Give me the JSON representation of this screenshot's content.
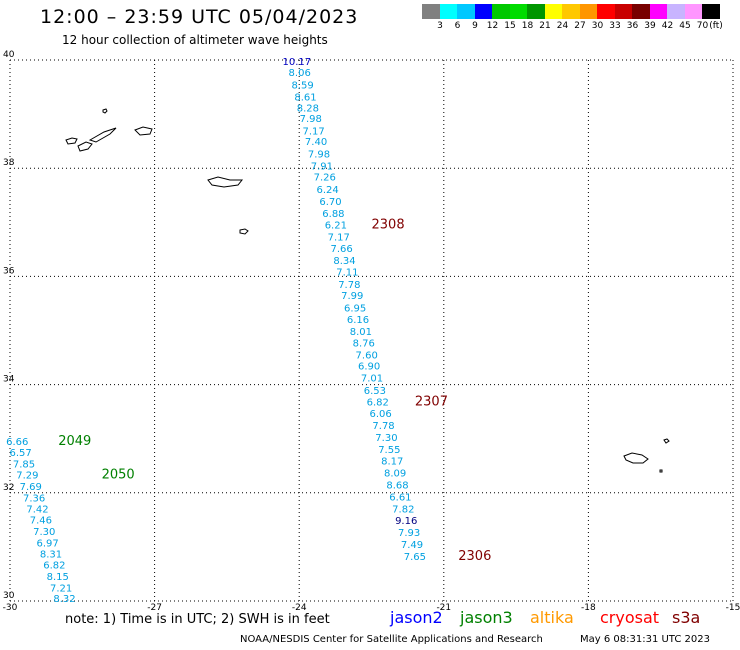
{
  "header": {
    "title": "12:00 – 23:59 UTC 05/04/2023",
    "subtitle": "12 hour collection of altimeter wave heights"
  },
  "legend": {
    "colors": [
      "#808080",
      "#00ffff",
      "#00c8ff",
      "#0000ff",
      "#00c800",
      "#00dc00",
      "#009600",
      "#ffff00",
      "#ffc800",
      "#ff9600",
      "#ff0000",
      "#c80000",
      "#780000",
      "#ff00ff",
      "#c8b4ff",
      "#ff96ff",
      "#000000"
    ],
    "ticks": [
      "3",
      "6",
      "9",
      "12",
      "15",
      "18",
      "21",
      "24",
      "27",
      "30",
      "33",
      "36",
      "39",
      "42",
      "45",
      "70"
    ],
    "unit": "(ft)"
  },
  "axes": {
    "lat_labels": [
      "40",
      "38",
      "36",
      "34",
      "32",
      "30"
    ],
    "lon_labels": [
      "-30",
      "-27",
      "-24",
      "-21",
      "-18",
      "-15"
    ],
    "lat_range": [
      30,
      40
    ],
    "lon_range": [
      -30,
      -15
    ]
  },
  "colors": {
    "jason2": "#0000ff",
    "jason3": "#008000",
    "altika": "#ff9900",
    "cryosat": "#ff0000",
    "s3a": "#800000",
    "swh_cyan": "#00a0e0",
    "swh_dark": "#000080"
  },
  "tracks": [
    {
      "name": "2308",
      "color": "#800000",
      "points": [
        {
          "lon": -24.05,
          "lat": 39.91,
          "v": "10.17",
          "c": "#0000c0"
        },
        {
          "lon": -23.99,
          "lat": 39.7,
          "v": "8.06"
        },
        {
          "lon": -23.93,
          "lat": 39.47,
          "v": "8.59"
        },
        {
          "lon": -23.87,
          "lat": 39.25,
          "v": "8.61"
        },
        {
          "lon": -23.82,
          "lat": 39.05,
          "v": "8.28"
        },
        {
          "lon": -23.76,
          "lat": 38.85,
          "v": "7.98"
        },
        {
          "lon": -23.7,
          "lat": 38.62,
          "v": "7.17"
        },
        {
          "lon": -23.65,
          "lat": 38.43,
          "v": "7.40"
        },
        {
          "lon": -23.59,
          "lat": 38.2,
          "v": "7.98"
        },
        {
          "lon": -23.53,
          "lat": 37.98,
          "v": "7.91"
        },
        {
          "lon": -23.47,
          "lat": 37.77,
          "v": "7.26"
        },
        {
          "lon": -23.41,
          "lat": 37.54,
          "v": "6.24"
        },
        {
          "lon": -23.35,
          "lat": 37.32,
          "v": "6.70"
        },
        {
          "lon": -23.29,
          "lat": 37.1,
          "v": "6.88"
        },
        {
          "lon": -23.24,
          "lat": 36.89,
          "v": "6.21"
        },
        {
          "lon": -23.18,
          "lat": 36.66,
          "v": "7.17"
        },
        {
          "lon": -23.12,
          "lat": 36.45,
          "v": "7.66"
        },
        {
          "lon": -23.06,
          "lat": 36.23,
          "v": "8.34"
        },
        {
          "lon": -23.0,
          "lat": 36.02,
          "v": "7.11"
        }
      ],
      "label_lon": -22.5,
      "label_lat": 36.89
    },
    {
      "name": "2307",
      "color": "#800000",
      "points": [
        {
          "lon": -22.96,
          "lat": 35.79,
          "v": "7.78"
        },
        {
          "lon": -22.9,
          "lat": 35.58,
          "v": "7.99"
        },
        {
          "lon": -22.84,
          "lat": 35.35,
          "v": "6.95"
        },
        {
          "lon": -22.78,
          "lat": 35.14,
          "v": "6.16"
        },
        {
          "lon": -22.72,
          "lat": 34.92,
          "v": "8.01"
        },
        {
          "lon": -22.66,
          "lat": 34.7,
          "v": "8.76"
        },
        {
          "lon": -22.6,
          "lat": 34.48,
          "v": "7.60"
        },
        {
          "lon": -22.55,
          "lat": 34.28,
          "v": "6.90"
        },
        {
          "lon": -22.49,
          "lat": 34.06,
          "v": "7.01"
        },
        {
          "lon": -22.43,
          "lat": 33.83,
          "v": "6.53"
        },
        {
          "lon": -22.37,
          "lat": 33.61,
          "v": "6.82"
        },
        {
          "lon": -22.31,
          "lat": 33.4,
          "v": "6.06"
        },
        {
          "lon": -22.25,
          "lat": 33.18,
          "v": "7.78"
        },
        {
          "lon": -22.19,
          "lat": 32.96,
          "v": "7.30"
        },
        {
          "lon": -22.13,
          "lat": 32.74,
          "v": "7.55"
        },
        {
          "lon": -22.07,
          "lat": 32.52,
          "v": "8.17"
        },
        {
          "lon": -22.01,
          "lat": 32.3,
          "v": "8.09"
        }
      ],
      "label_lon": -21.6,
      "label_lat": 33.61
    },
    {
      "name": "2306",
      "color": "#800000",
      "points": [
        {
          "lon": -21.96,
          "lat": 32.08,
          "v": "8.68"
        },
        {
          "lon": -21.9,
          "lat": 31.86,
          "v": "6.61"
        },
        {
          "lon": -21.84,
          "lat": 31.64,
          "v": "7.82"
        },
        {
          "lon": -21.78,
          "lat": 31.42,
          "v": "9.16",
          "c": "#000080"
        },
        {
          "lon": -21.72,
          "lat": 31.2,
          "v": "7.93"
        },
        {
          "lon": -21.66,
          "lat": 30.98,
          "v": "7.49"
        },
        {
          "lon": -21.6,
          "lat": 30.76,
          "v": "7.65"
        }
      ],
      "label_lon": -20.7,
      "label_lat": 30.76
    },
    {
      "name": "2049",
      "color": "#008000",
      "points": [
        {
          "lon": -29.85,
          "lat": 32.88,
          "v": "6.66"
        },
        {
          "lon": -29.78,
          "lat": 32.68,
          "v": "6.57"
        },
        {
          "lon": -29.71,
          "lat": 32.47,
          "v": "7.85"
        },
        {
          "lon": -29.64,
          "lat": 32.26,
          "v": "7.29"
        }
      ],
      "label_lon": -29.0,
      "label_lat": 32.88
    },
    {
      "name": "2050",
      "color": "#008000",
      "points": [
        {
          "lon": -29.57,
          "lat": 32.05,
          "v": "7.69"
        },
        {
          "lon": -29.5,
          "lat": 31.84,
          "v": "7.36"
        },
        {
          "lon": -29.43,
          "lat": 31.64,
          "v": "7.42"
        },
        {
          "lon": -29.36,
          "lat": 31.43,
          "v": "7.46"
        },
        {
          "lon": -29.29,
          "lat": 31.22,
          "v": "7.30"
        },
        {
          "lon": -29.22,
          "lat": 31.01,
          "v": "6.97"
        },
        {
          "lon": -29.15,
          "lat": 30.8,
          "v": "8.31"
        },
        {
          "lon": -29.08,
          "lat": 30.6,
          "v": "6.82"
        },
        {
          "lon": -29.01,
          "lat": 30.39,
          "v": "8.15"
        },
        {
          "lon": -28.94,
          "lat": 30.18,
          "v": "7.21"
        },
        {
          "lon": -28.87,
          "lat": 29.98,
          "v": "8.32"
        }
      ],
      "label_lon": -28.1,
      "label_lat": 32.26
    }
  ],
  "note": "note:  1) Time is in UTC; 2) SWH is in feet",
  "satellites": [
    {
      "name": "jason2",
      "color": "#0000ff"
    },
    {
      "name": "jason3",
      "color": "#008000"
    },
    {
      "name": "altika",
      "color": "#ff9900"
    },
    {
      "name": "cryosat",
      "color": "#ff0000"
    },
    {
      "name": "s3a",
      "color": "#800000"
    }
  ],
  "footer": "NOAA/NESDIS Center for Satellite Applications and Research",
  "timestamp": "May  6 08:31:31 UTC 2023"
}
